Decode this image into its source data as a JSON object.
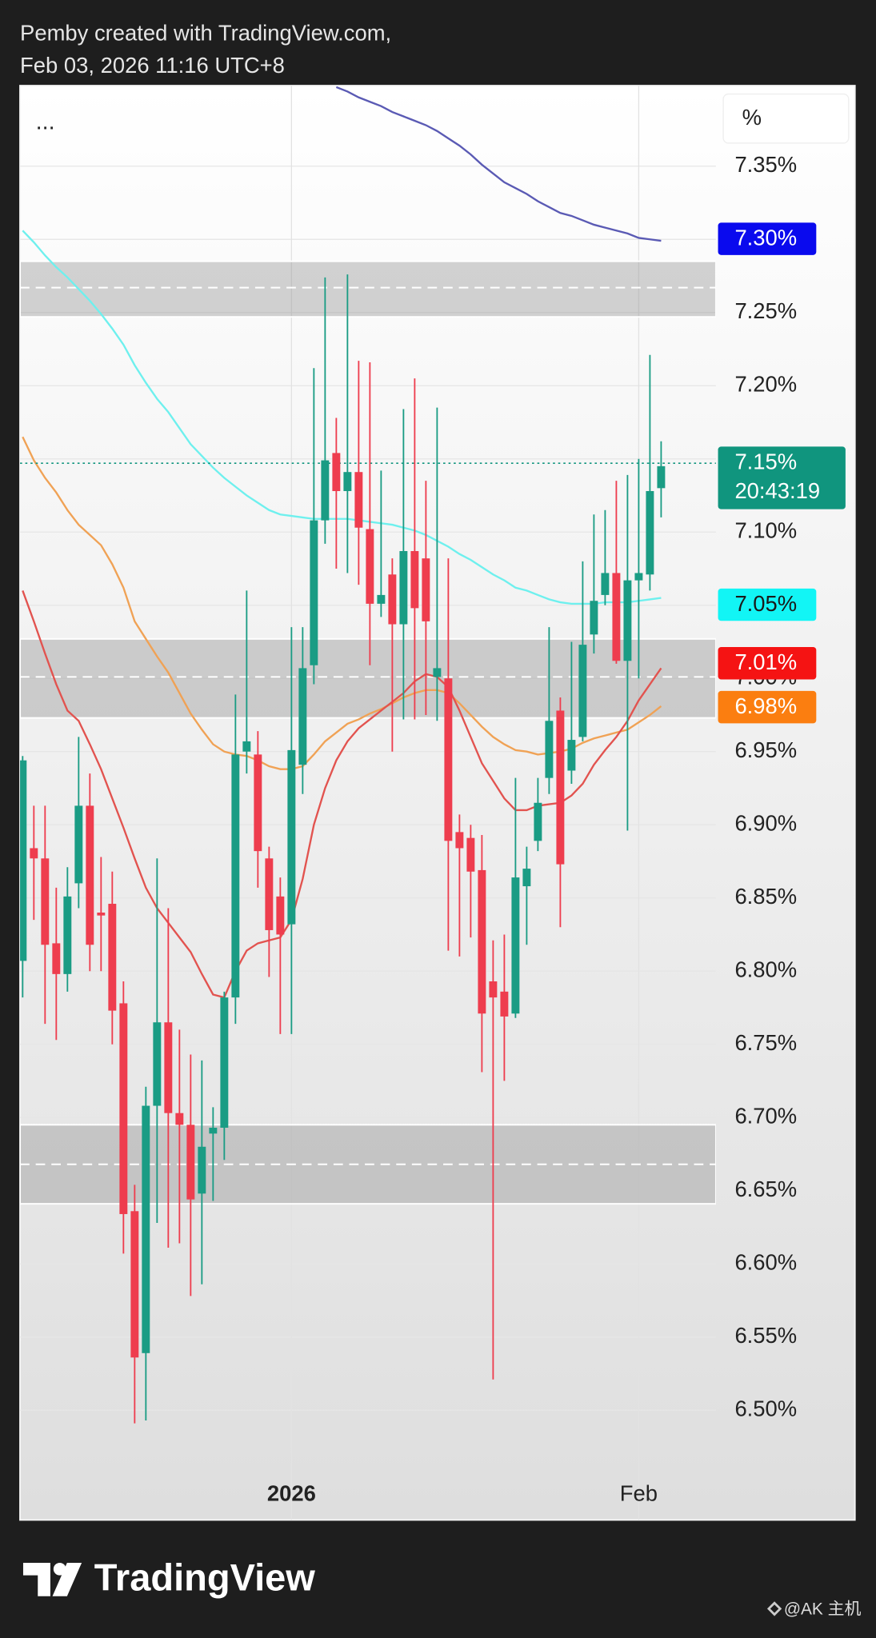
{
  "header": {
    "attribution": "Pemby created with TradingView.com,",
    "timestamp": "Feb 03, 2026 11:16 UTC+8"
  },
  "footer": {
    "brand": "TradingView",
    "watermark": "@AK 主机"
  },
  "chart_data": {
    "type": "candlestick",
    "menu": "...",
    "unit_label": "%",
    "categories": [
      null,
      null,
      null,
      null,
      null,
      null,
      null,
      null,
      null,
      null,
      null,
      null,
      null,
      null,
      null,
      null,
      null,
      null,
      null,
      null,
      null,
      null,
      null,
      null,
      "2026",
      null,
      null,
      null,
      null,
      null,
      null,
      null,
      null,
      null,
      null,
      null,
      null,
      null,
      null,
      null,
      null,
      null,
      null,
      null,
      null,
      null,
      null,
      null,
      null,
      null,
      null,
      null,
      null,
      null,
      null,
      "Feb",
      null,
      null
    ],
    "open": [
      6.807,
      6.884,
      6.877,
      6.819,
      6.798,
      6.86,
      6.913,
      6.84,
      6.846,
      6.778,
      6.636,
      6.539,
      6.708,
      6.765,
      6.703,
      6.695,
      6.648,
      6.689,
      6.693,
      6.782,
      6.95,
      6.948,
      6.877,
      6.851,
      6.832,
      6.941,
      7.009,
      7.108,
      7.154,
      7.128,
      7.141,
      7.102,
      7.051,
      7.071,
      7.037,
      7.087,
      7.082,
      7.001,
      7.0,
      6.895,
      6.891,
      6.869,
      6.793,
      6.786,
      6.771,
      6.858,
      6.889,
      6.932,
      6.978,
      6.937,
      6.96,
      7.03,
      7.057,
      7.072,
      7.012,
      7.067,
      7.071,
      7.13
    ],
    "high": [
      6.947,
      6.913,
      6.913,
      6.857,
      6.871,
      6.96,
      6.935,
      6.878,
      6.868,
      6.793,
      6.654,
      6.721,
      6.877,
      6.843,
      6.76,
      6.743,
      6.739,
      6.707,
      6.786,
      6.989,
      7.06,
      6.964,
      6.885,
      6.864,
      7.035,
      7.035,
      7.212,
      7.274,
      7.178,
      7.276,
      7.217,
      7.216,
      7.142,
      7.082,
      7.184,
      7.205,
      7.135,
      7.185,
      7.082,
      6.907,
      6.9,
      6.893,
      6.821,
      6.825,
      6.932,
      6.885,
      6.932,
      7.035,
      6.987,
      7.025,
      7.08,
      7.112,
      7.115,
      7.135,
      7.139,
      7.15,
      7.221,
      7.162
    ],
    "low": [
      6.782,
      6.835,
      6.764,
      6.753,
      6.786,
      6.843,
      6.8,
      6.8,
      6.75,
      6.607,
      6.491,
      6.493,
      6.628,
      6.611,
      6.614,
      6.578,
      6.586,
      6.643,
      6.671,
      6.764,
      6.935,
      6.857,
      6.796,
      6.757,
      6.757,
      6.921,
      6.996,
      7.092,
      7.075,
      7.072,
      7.064,
      7.009,
      7.042,
      6.95,
      6.972,
      6.972,
      6.975,
      6.971,
      6.814,
      6.81,
      6.823,
      6.731,
      6.521,
      6.725,
      6.768,
      6.818,
      6.882,
      6.921,
      6.83,
      6.928,
      6.957,
      7.017,
      7.05,
      7.01,
      6.896,
      7.0,
      7.06,
      7.11
    ],
    "close": [
      6.944,
      6.877,
      6.818,
      6.798,
      6.851,
      6.913,
      6.818,
      6.838,
      6.773,
      6.634,
      6.536,
      6.708,
      6.765,
      6.703,
      6.695,
      6.644,
      6.68,
      6.693,
      6.782,
      6.948,
      6.957,
      6.882,
      6.828,
      6.825,
      6.951,
      7.007,
      7.108,
      7.149,
      7.128,
      7.141,
      7.103,
      7.051,
      7.057,
      7.037,
      7.087,
      7.048,
      7.039,
      7.007,
      6.889,
      6.884,
      6.868,
      6.771,
      6.782,
      6.769,
      6.864,
      6.87,
      6.915,
      6.971,
      6.873,
      6.958,
      7.023,
      7.053,
      7.072,
      7.012,
      7.067,
      7.072,
      7.128,
      7.145
    ],
    "up_color": "#1a9c84",
    "down_color": "#ee3d4e",
    "lines": [
      {
        "color": "#5a5ab4",
        "values": [
          null,
          null,
          null,
          null,
          null,
          null,
          null,
          null,
          null,
          null,
          null,
          null,
          null,
          null,
          null,
          null,
          null,
          null,
          null,
          null,
          null,
          null,
          null,
          null,
          null,
          null,
          null,
          null,
          7.404,
          7.401,
          7.397,
          7.394,
          7.391,
          7.387,
          7.384,
          7.381,
          7.378,
          7.374,
          7.369,
          7.364,
          7.358,
          7.351,
          7.345,
          7.339,
          7.335,
          7.331,
          7.326,
          7.322,
          7.318,
          7.316,
          7.313,
          7.31,
          7.308,
          7.306,
          7.304,
          7.301,
          7.3,
          7.299
        ]
      },
      {
        "color": "#6ef0ee",
        "values": [
          7.306,
          7.298,
          7.289,
          7.281,
          7.274,
          7.266,
          7.258,
          7.249,
          7.239,
          7.228,
          7.214,
          7.202,
          7.191,
          7.182,
          7.171,
          7.16,
          7.152,
          7.144,
          7.137,
          7.131,
          7.125,
          7.12,
          7.115,
          7.112,
          7.111,
          7.11,
          7.109,
          7.109,
          7.109,
          7.109,
          7.108,
          7.107,
          7.106,
          7.105,
          7.103,
          7.101,
          7.098,
          7.094,
          7.09,
          7.085,
          7.081,
          7.076,
          7.071,
          7.067,
          7.062,
          7.06,
          7.057,
          7.054,
          7.052,
          7.051,
          7.051,
          7.051,
          7.052,
          7.052,
          7.052,
          7.053,
          7.054,
          7.055
        ]
      },
      {
        "color": "#f0a255",
        "values": [
          7.165,
          7.149,
          7.137,
          7.127,
          7.115,
          7.105,
          7.098,
          7.091,
          7.078,
          7.062,
          7.039,
          7.027,
          7.015,
          7.004,
          6.99,
          6.976,
          6.965,
          6.955,
          6.95,
          6.948,
          6.947,
          6.944,
          6.94,
          6.938,
          6.938,
          6.94,
          6.948,
          6.957,
          6.963,
          6.969,
          6.972,
          6.976,
          6.979,
          6.983,
          6.987,
          6.99,
          6.992,
          6.992,
          6.99,
          6.983,
          6.975,
          6.967,
          6.96,
          6.955,
          6.951,
          6.95,
          6.948,
          6.949,
          6.95,
          6.952,
          6.956,
          6.959,
          6.961,
          6.963,
          6.965,
          6.97,
          6.975,
          6.981
        ]
      },
      {
        "color": "#e2534f",
        "values": [
          7.06,
          7.039,
          7.017,
          6.996,
          6.978,
          6.971,
          6.955,
          6.938,
          6.918,
          6.898,
          6.877,
          6.857,
          6.843,
          6.833,
          6.823,
          6.813,
          6.798,
          6.784,
          6.782,
          6.8,
          6.814,
          6.819,
          6.821,
          6.823,
          6.835,
          6.863,
          6.9,
          6.925,
          6.944,
          6.957,
          6.966,
          6.972,
          6.978,
          6.984,
          6.99,
          6.998,
          7.003,
          7.001,
          6.994,
          6.978,
          6.96,
          6.942,
          6.93,
          6.918,
          6.91,
          6.91,
          6.913,
          6.914,
          6.915,
          6.92,
          6.928,
          6.941,
          6.951,
          6.96,
          6.971,
          6.985,
          6.996,
          7.007
        ]
      }
    ],
    "zones": [
      {
        "high": 7.285,
        "low": 7.247,
        "mid": 7.267
      },
      {
        "high": 7.027,
        "low": 6.973,
        "mid": 7.001
      },
      {
        "high": 6.695,
        "low": 6.641,
        "mid": 6.668
      }
    ],
    "tags": [
      {
        "value": 7.3,
        "label": "7.30%",
        "color": "#0a0aee",
        "text_color": "#ffffff"
      },
      {
        "value": 7.147,
        "label": "7.15%",
        "countdown": "20:43:19",
        "color": "#10957e",
        "text_color": "#ffffff",
        "dotted_line": true
      },
      {
        "value": 7.05,
        "label": "7.05%",
        "color": "#12f5f5",
        "text_color": "#1a1a1a"
      },
      {
        "value": 7.01,
        "label": "7.01%",
        "color": "#f51313",
        "text_color": "#ffffff"
      },
      {
        "value": 6.98,
        "label": "6.98%",
        "color": "#fb7e10",
        "text_color": "#ffffff"
      }
    ],
    "ylim": [
      6.425,
      7.405
    ],
    "yticks": [
      {
        "value": 6.5,
        "label": "6.50%"
      },
      {
        "value": 6.55,
        "label": "6.55%"
      },
      {
        "value": 6.6,
        "label": "6.60%"
      },
      {
        "value": 6.65,
        "label": "6.65%"
      },
      {
        "value": 6.7,
        "label": "6.70%"
      },
      {
        "value": 6.75,
        "label": "6.75%"
      },
      {
        "value": 6.8,
        "label": "6.80%"
      },
      {
        "value": 6.85,
        "label": "6.85%"
      },
      {
        "value": 6.9,
        "label": "6.90%"
      },
      {
        "value": 6.95,
        "label": "6.95%"
      },
      {
        "value": 7.0,
        "label": "7.00%"
      },
      {
        "value": 7.05,
        "label": "7.05%"
      },
      {
        "value": 7.1,
        "label": "7.10%"
      },
      {
        "value": 7.15,
        "label": "7.15%"
      },
      {
        "value": 7.2,
        "label": "7.20%"
      },
      {
        "value": 7.25,
        "label": "7.25%"
      },
      {
        "value": 7.3,
        "label": "7.30%"
      },
      {
        "value": 7.35,
        "label": "7.35%"
      }
    ],
    "grid": true
  }
}
